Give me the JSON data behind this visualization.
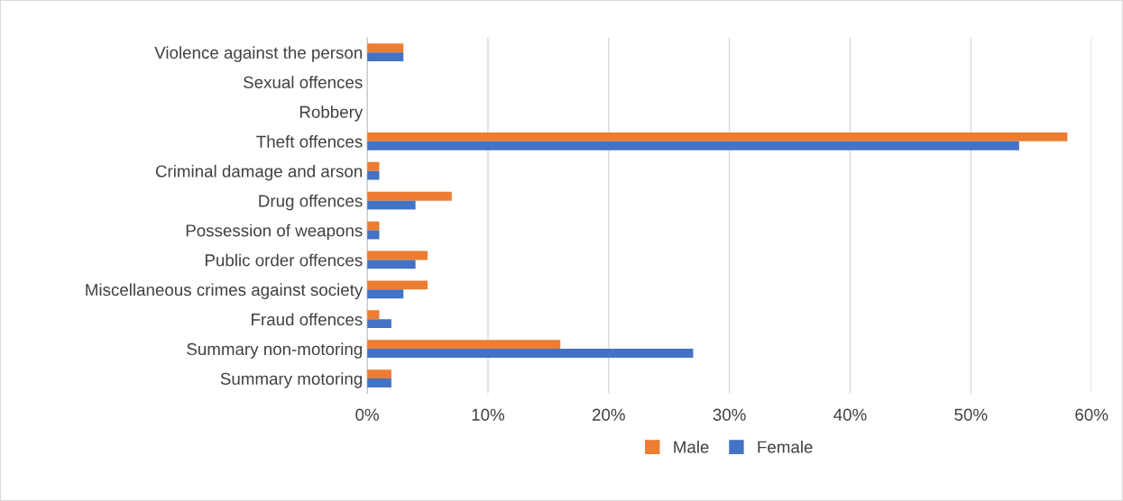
{
  "chart_data": {
    "type": "bar",
    "orientation": "horizontal",
    "categories": [
      "Violence against the person",
      "Sexual offences",
      "Robbery",
      "Theft offences",
      "Criminal damage and arson",
      "Drug offences",
      "Possession of weapons",
      "Public order offences",
      "Miscellaneous crimes against society",
      "Fraud offences",
      "Summary non-motoring",
      "Summary motoring"
    ],
    "series": [
      {
        "name": "Male",
        "color": "#ed7d31",
        "values": [
          3,
          0,
          0,
          58,
          1,
          7,
          1,
          5,
          5,
          1,
          16,
          2
        ]
      },
      {
        "name": "Female",
        "color": "#4472c4",
        "values": [
          3,
          0,
          0,
          54,
          1,
          4,
          1,
          4,
          3,
          2,
          27,
          2
        ]
      }
    ],
    "xlim": [
      0,
      60
    ],
    "xticks": [
      {
        "value": 0,
        "label": "0%"
      },
      {
        "value": 10,
        "label": "10%"
      },
      {
        "value": 20,
        "label": "20%"
      },
      {
        "value": 30,
        "label": "30%"
      },
      {
        "value": 40,
        "label": "40%"
      },
      {
        "value": 50,
        "label": "50%"
      },
      {
        "value": 60,
        "label": "60%"
      }
    ],
    "grid": "x",
    "legend": "bottom"
  }
}
